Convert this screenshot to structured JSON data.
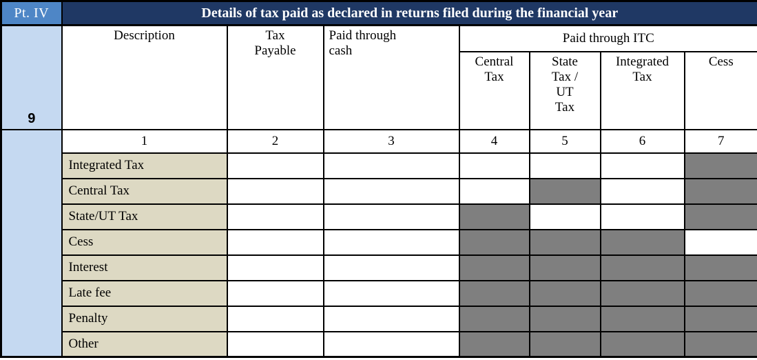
{
  "part_label": "Pt. IV",
  "section_number": "9",
  "title": "Details of tax paid as declared in returns filed during the financial year",
  "headers": {
    "description": "Description",
    "tax_payable": "Tax Payable",
    "paid_through_cash": "Paid through cash",
    "paid_through_itc": "Paid through ITC"
  },
  "itc_columns": [
    "Central Tax",
    "State Tax / UT Tax",
    "Integrated Tax",
    "Cess"
  ],
  "column_numbers": [
    "1",
    "2",
    "3",
    "4",
    "5",
    "6",
    "7"
  ],
  "rows": [
    {
      "label": "Integrated Tax",
      "cells": [
        "open",
        "open",
        "open",
        "open",
        "open",
        "blocked"
      ]
    },
    {
      "label": "Central Tax",
      "cells": [
        "open",
        "open",
        "open",
        "blocked",
        "open",
        "blocked"
      ]
    },
    {
      "label": "State/UT Tax",
      "cells": [
        "open",
        "open",
        "blocked",
        "open",
        "open",
        "blocked"
      ]
    },
    {
      "label": "Cess",
      "cells": [
        "open",
        "open",
        "blocked",
        "blocked",
        "blocked",
        "open"
      ]
    },
    {
      "label": "Interest",
      "cells": [
        "open",
        "open",
        "blocked",
        "blocked",
        "blocked",
        "blocked"
      ]
    },
    {
      "label": "Late fee",
      "cells": [
        "open",
        "open",
        "blocked",
        "blocked",
        "blocked",
        "blocked"
      ]
    },
    {
      "label": "Penalty",
      "cells": [
        "open",
        "open",
        "blocked",
        "blocked",
        "blocked",
        "blocked"
      ]
    },
    {
      "label": "Other",
      "cells": [
        "open",
        "open",
        "blocked",
        "blocked",
        "blocked",
        "blocked"
      ]
    }
  ],
  "colors": {
    "title_bar": "#1F3864",
    "part_badge": "#4E86C6",
    "sidebar": "#C5D9F1",
    "row_label": "#DDD9C3",
    "blocked": "#7F7F7F",
    "border": "#000000"
  }
}
